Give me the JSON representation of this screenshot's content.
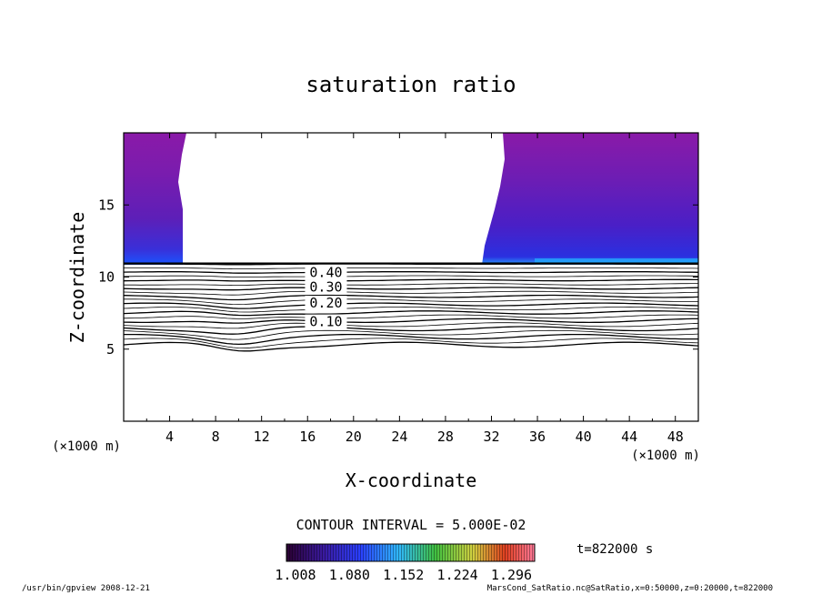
{
  "chart_data": {
    "type": "contour",
    "title": "saturation ratio",
    "xlabel": "X-coordinate",
    "ylabel": "Z-coordinate",
    "x_unit": "(×1000 m)",
    "z_unit": "(×1000 m)",
    "xlim": [
      0,
      50
    ],
    "ylim": [
      0,
      20
    ],
    "x_ticks": [
      4,
      8,
      12,
      16,
      20,
      24,
      28,
      32,
      36,
      40,
      44,
      48
    ],
    "y_ticks": [
      5,
      10,
      15
    ],
    "contour_labels": [
      0.1,
      0.2,
      0.3,
      0.4
    ],
    "contour_interval_text": "CONTOUR INTERVAL = 5.000E-02",
    "colorbar_ticks": [
      "1.008",
      "1.080",
      "1.152",
      "1.224",
      "1.296"
    ],
    "colorbar_range": [
      1.008,
      1.296
    ],
    "time_label": "t=822000 s",
    "footer_left": "/usr/bin/gpview   2008-12-21",
    "footer_right": "MarsCond_SatRatio.nc@SatRatio,x=0:50000,z=0:20000,t=822000",
    "colors": {
      "shade_low": "#1a33ff",
      "shade_high": "#8a1aa8",
      "line": "#000000"
    }
  }
}
